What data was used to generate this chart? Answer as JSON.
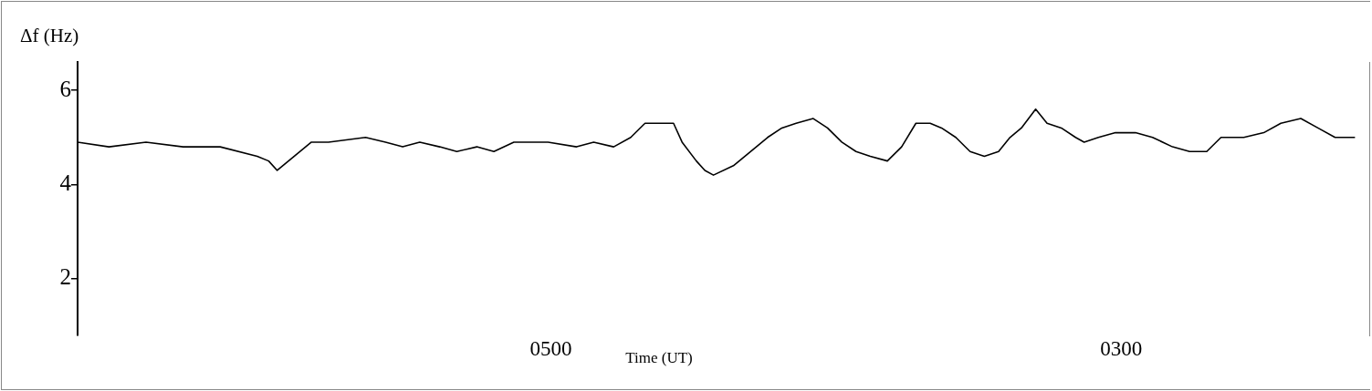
{
  "chart_data": {
    "type": "line",
    "xlabel": "Time (UT)",
    "ylabel": "Δf (Hz)",
    "xlim": [
      666,
      213
    ],
    "xticks": [
      {
        "value": 500,
        "label": "0500"
      },
      {
        "value": 300,
        "label": "0300"
      }
    ],
    "ylim": [
      0.8,
      6.6
    ],
    "yticks": [
      2,
      4,
      6
    ],
    "marker": "none",
    "line_style": "solid",
    "series": [
      {
        "color": "#000000",
        "x": [
          666,
          655,
          642,
          629,
          616,
          603,
          599,
          596,
          590,
          584,
          578,
          565,
          558,
          552,
          546,
          539,
          533,
          526,
          520,
          513,
          501,
          491,
          485,
          478,
          472,
          467,
          460,
          457,
          454,
          449,
          446,
          443,
          436,
          430,
          424,
          419,
          414,
          408,
          403,
          398,
          393,
          388,
          382,
          377,
          372,
          367,
          363,
          358,
          353,
          348,
          343,
          339,
          335,
          330,
          326,
          321,
          316,
          313,
          308,
          302,
          295,
          289,
          282,
          276,
          270,
          265,
          257,
          250,
          244,
          237,
          231,
          225,
          218
        ],
        "values": [
          4.9,
          4.8,
          4.9,
          4.8,
          4.8,
          4.6,
          4.5,
          4.3,
          4.6,
          4.9,
          4.9,
          5.0,
          4.9,
          4.8,
          4.9,
          4.8,
          4.7,
          4.8,
          4.7,
          4.9,
          4.9,
          4.8,
          4.9,
          4.8,
          5.0,
          5.3,
          5.3,
          5.3,
          4.9,
          4.5,
          4.3,
          4.2,
          4.4,
          4.7,
          5.0,
          5.2,
          5.3,
          5.4,
          5.2,
          4.9,
          4.7,
          4.6,
          4.5,
          4.8,
          5.3,
          5.3,
          5.2,
          5.0,
          4.7,
          4.6,
          4.7,
          5.0,
          5.2,
          5.6,
          5.3,
          5.2,
          5.0,
          4.9,
          5.0,
          5.1,
          5.1,
          5.0,
          4.8,
          4.7,
          4.7,
          5.0,
          5.0,
          5.1,
          5.3,
          5.4,
          5.2,
          5.0,
          5.0
        ]
      }
    ]
  }
}
